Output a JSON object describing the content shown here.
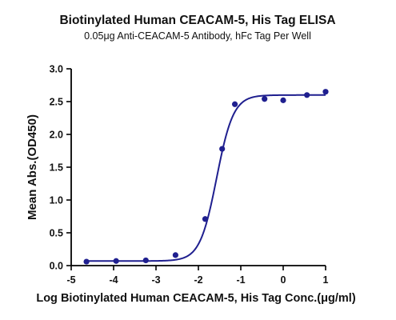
{
  "chart_data": {
    "type": "scatter",
    "title": "Biotinylated Human CEACAM-5, His Tag ELISA",
    "subtitle": "0.05μg Anti-CEACAM-5 Antibody, hFc Tag Per Well",
    "xlabel": "Log Biotinylated Human CEACAM-5, His Tag Conc.(μg/ml)",
    "ylabel": "Mean Abs.(OD450)",
    "xlim": [
      -5,
      1
    ],
    "ylim": [
      0,
      3.0
    ],
    "x_ticks": [
      -5,
      -4,
      -3,
      -2,
      -1,
      0,
      1
    ],
    "x_tick_labels": [
      "-5",
      "-4",
      "-3",
      "-2",
      "-1",
      "0",
      "1"
    ],
    "y_ticks": [
      0,
      0.5,
      1.0,
      1.5,
      2.0,
      2.5,
      3.0
    ],
    "y_tick_labels": [
      "0.0",
      "0.5",
      "1.0",
      "1.5",
      "2.0",
      "2.5",
      "3.0"
    ],
    "grid": false,
    "series": [
      {
        "color": "#1f1f8f",
        "x": [
          -4.64,
          -3.94,
          -3.24,
          -2.54,
          -1.84,
          -1.44,
          -1.14,
          -0.44,
          0.0,
          0.56,
          1.0
        ],
        "values": [
          0.06,
          0.07,
          0.08,
          0.16,
          0.71,
          1.78,
          2.46,
          2.54,
          2.52,
          2.6,
          2.65
        ]
      }
    ],
    "fit": {
      "type": "4PL",
      "bottom": 0.07,
      "top": 2.6,
      "log_ec50": -1.57,
      "hill_slope": 2.2
    }
  }
}
